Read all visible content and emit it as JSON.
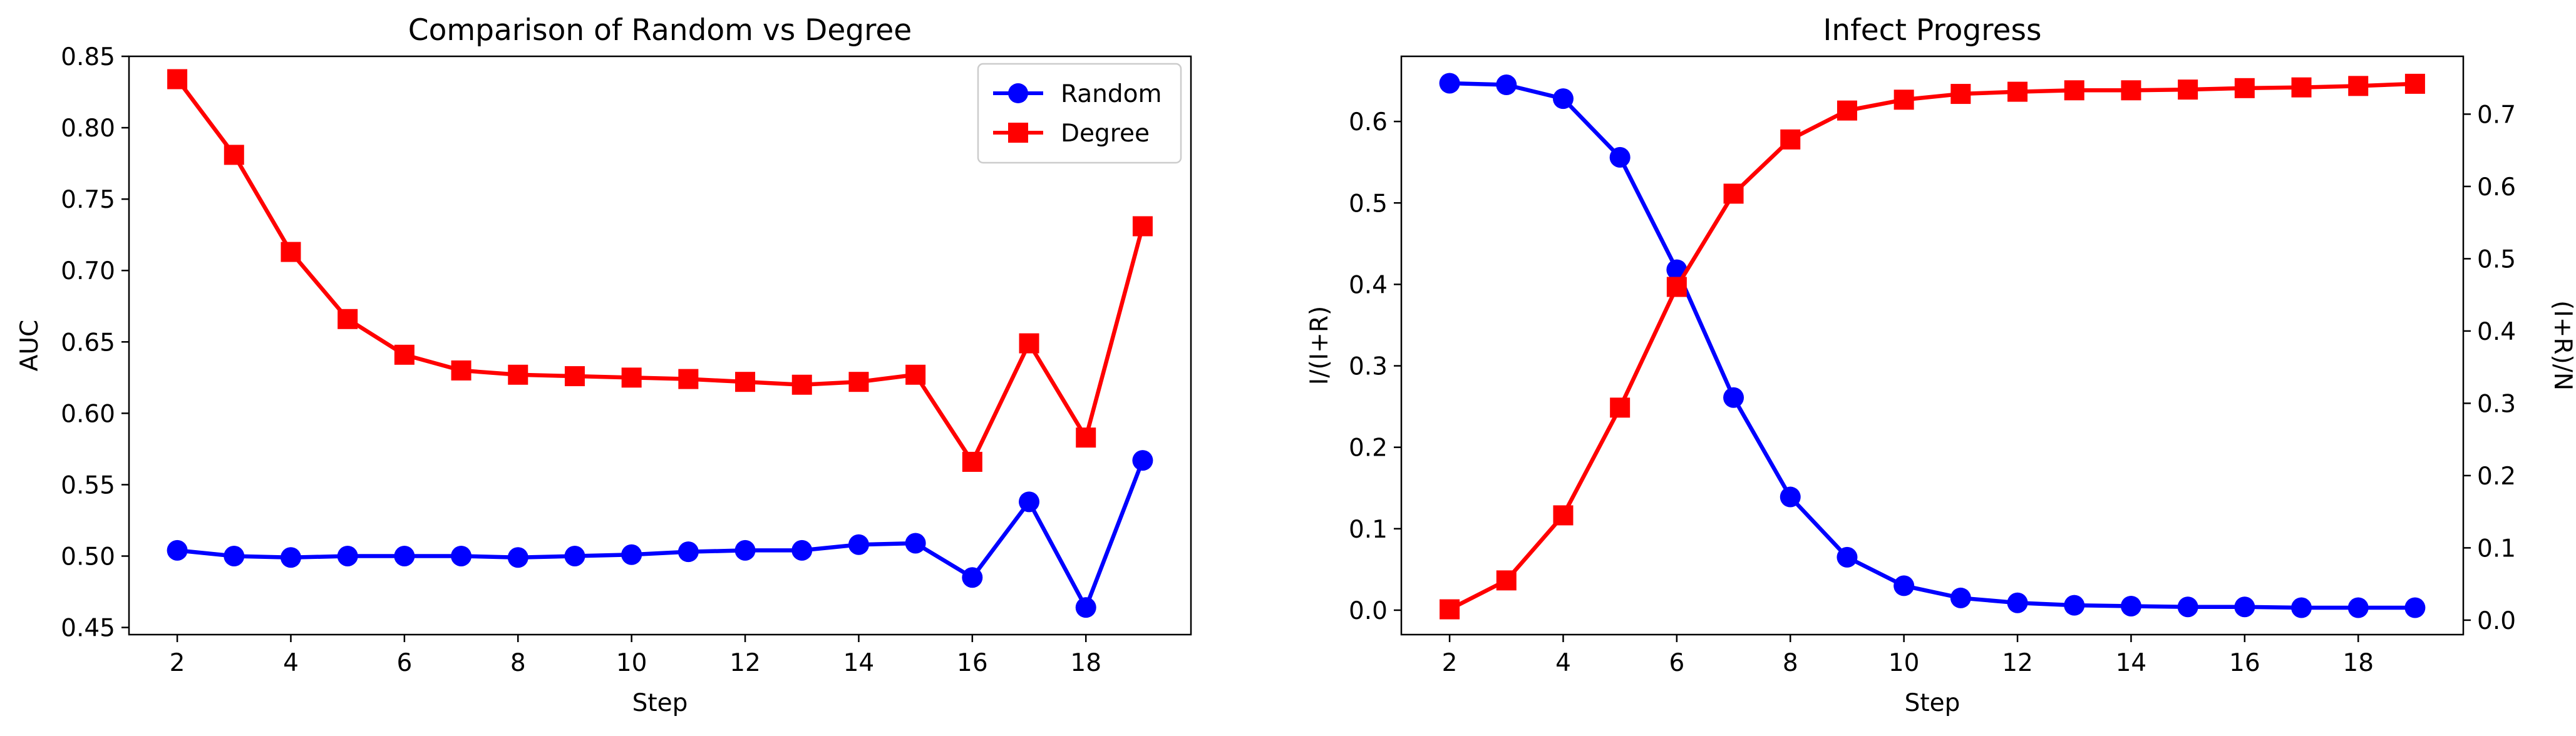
{
  "charts": {
    "left": {
      "title": "Comparison of Random vs Degree",
      "xlabel": "Step",
      "ylabel": "AUC",
      "legend": {
        "random": "Random",
        "degree": "Degree"
      }
    },
    "right": {
      "title": "Infect Progress",
      "xlabel": "Step",
      "ylabel_left": "I/(I+R)",
      "ylabel_right": "(I+R)/N"
    }
  },
  "chart_data": [
    {
      "type": "line",
      "title": "Comparison of Random vs Degree",
      "xlabel": "Step",
      "ylabel": "AUC",
      "x": [
        2,
        3,
        4,
        5,
        6,
        7,
        8,
        9,
        10,
        11,
        12,
        13,
        14,
        15,
        16,
        17,
        18,
        19
      ],
      "xlim": [
        1.15,
        19.85
      ],
      "ylim": [
        0.445,
        0.85
      ],
      "xticks": [
        2,
        4,
        6,
        8,
        10,
        12,
        14,
        16,
        18
      ],
      "yticks": [
        0.45,
        0.5,
        0.55,
        0.6,
        0.65,
        0.7,
        0.75,
        0.8,
        0.85
      ],
      "legend_position": "top-right",
      "series": [
        {
          "name": "Random",
          "color": "#0000ff",
          "marker": "circle",
          "values": [
            0.504,
            0.5,
            0.499,
            0.5,
            0.5,
            0.5,
            0.499,
            0.5,
            0.501,
            0.503,
            0.504,
            0.504,
            0.508,
            0.509,
            0.485,
            0.538,
            0.464,
            0.567
          ]
        },
        {
          "name": "Degree",
          "color": "#ff0000",
          "marker": "square",
          "values": [
            0.834,
            0.781,
            0.713,
            0.666,
            0.641,
            0.63,
            0.627,
            0.626,
            0.625,
            0.624,
            0.622,
            0.62,
            0.622,
            0.627,
            0.566,
            0.649,
            0.583,
            0.731
          ]
        }
      ]
    },
    {
      "type": "line",
      "title": "Infect Progress",
      "xlabel": "Step",
      "x": [
        2,
        3,
        4,
        5,
        6,
        7,
        8,
        9,
        10,
        11,
        12,
        13,
        14,
        15,
        16,
        17,
        18,
        19
      ],
      "xlim": [
        1.15,
        19.85
      ],
      "xticks": [
        2,
        4,
        6,
        8,
        10,
        12,
        14,
        16,
        18
      ],
      "series": [
        {
          "axis": "left",
          "axis_label": "I/(I+R)",
          "color": "#0000ff",
          "marker": "circle",
          "ylim": [
            -0.03,
            0.68
          ],
          "yticks": [
            0.0,
            0.1,
            0.2,
            0.3,
            0.4,
            0.5,
            0.6
          ],
          "values": [
            0.647,
            0.645,
            0.628,
            0.556,
            0.418,
            0.261,
            0.139,
            0.065,
            0.03,
            0.015,
            0.009,
            0.006,
            0.005,
            0.004,
            0.004,
            0.003,
            0.003,
            0.003
          ]
        },
        {
          "axis": "right",
          "axis_label": "(I+R)/N",
          "color": "#ff0000",
          "marker": "square",
          "ylim": [
            -0.02,
            0.78
          ],
          "yticks": [
            0.0,
            0.1,
            0.2,
            0.3,
            0.4,
            0.5,
            0.6,
            0.7
          ],
          "values": [
            0.015,
            0.055,
            0.145,
            0.294,
            0.461,
            0.59,
            0.665,
            0.705,
            0.72,
            0.728,
            0.731,
            0.733,
            0.733,
            0.734,
            0.736,
            0.737,
            0.739,
            0.742
          ]
        }
      ]
    }
  ]
}
